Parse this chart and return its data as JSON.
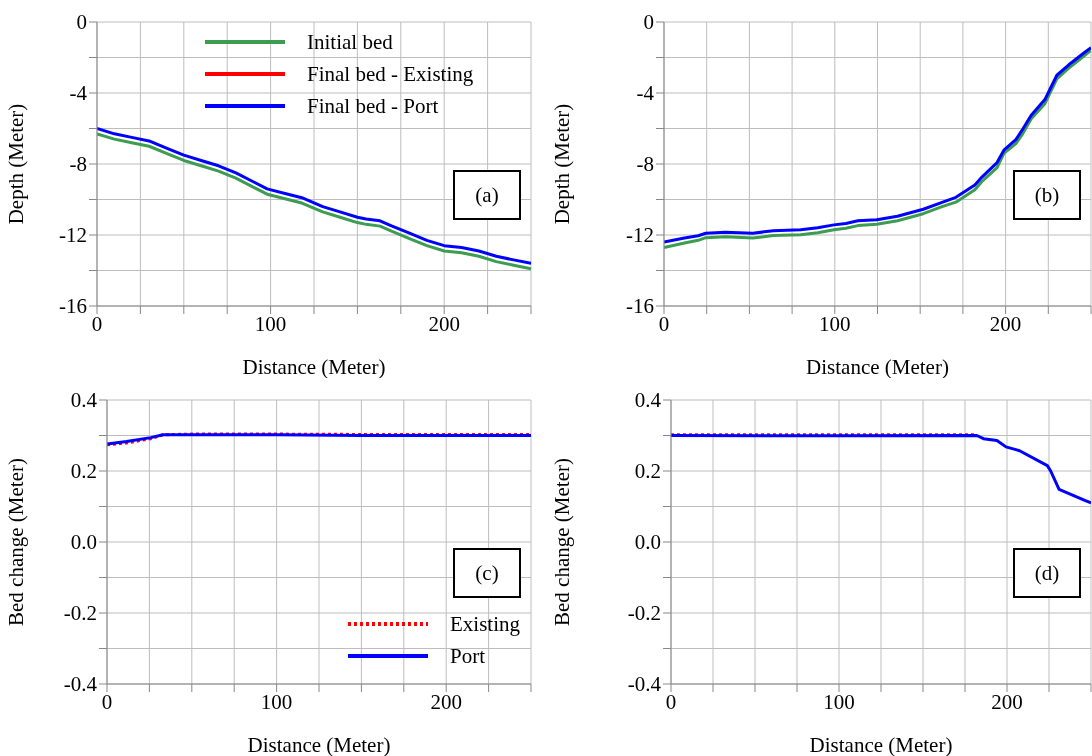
{
  "chart_data": [
    {
      "type": "line",
      "xlabel": "Distance (Meter)",
      "ylabel": "Depth (Meter)",
      "annotations": [
        "(a)"
      ],
      "legend": "top",
      "grid": true,
      "xlim": [
        0,
        250
      ],
      "xticks": [
        0,
        {
          "value": 25,
          "label": null
        },
        {
          "value": 50,
          "label": null
        },
        {
          "value": 75,
          "label": null
        },
        100,
        {
          "value": 125,
          "label": null
        },
        {
          "value": 150,
          "label": null
        },
        {
          "value": 175,
          "label": null
        },
        200,
        {
          "value": 225,
          "label": null
        },
        {
          "value": 250,
          "label": null
        }
      ],
      "ylim": [
        -16,
        0
      ],
      "yticks": [
        -16,
        {
          "value": -14,
          "label": null
        },
        -12,
        {
          "value": -10,
          "label": null
        },
        -8,
        {
          "value": -6,
          "label": null
        },
        -4,
        {
          "value": -2,
          "label": null
        },
        0
      ],
      "x": [
        0,
        10,
        20,
        30,
        40,
        50,
        60,
        70,
        80,
        90,
        98,
        110,
        118,
        130,
        140,
        150,
        155,
        163,
        170,
        180,
        190,
        200,
        210,
        220,
        230,
        240,
        250
      ],
      "series": [
        {
          "name": "Initial bed",
          "color": "#3c9c50",
          "line_style": "solid",
          "values": [
            -6.3,
            -6.6,
            -6.8,
            -7.0,
            -7.4,
            -7.8,
            -8.1,
            -8.4,
            -8.8,
            -9.3,
            -9.7,
            -10.0,
            -10.2,
            -10.7,
            -11.0,
            -11.3,
            -11.4,
            -11.5,
            -11.8,
            -12.2,
            -12.6,
            -12.9,
            -13.0,
            -13.2,
            -13.5,
            -13.7,
            -13.9
          ]
        },
        {
          "name": "Final bed - Existing",
          "color": "#ff0000",
          "line_style": "solid",
          "values": [
            null,
            null,
            null,
            null,
            null,
            null,
            null,
            null,
            null,
            null,
            null,
            null,
            null,
            null,
            null,
            null,
            null,
            null,
            null,
            null,
            null,
            null,
            null,
            null,
            null,
            null,
            null
          ]
        },
        {
          "name": "Final bed - Port",
          "color": "#0000ff",
          "line_style": "solid",
          "values": [
            -6.0,
            -6.3,
            -6.5,
            -6.7,
            -7.1,
            -7.5,
            -7.8,
            -8.1,
            -8.5,
            -9.0,
            -9.4,
            -9.7,
            -9.9,
            -10.4,
            -10.7,
            -11.0,
            -11.1,
            -11.2,
            -11.5,
            -11.9,
            -12.3,
            -12.6,
            -12.7,
            -12.9,
            -13.2,
            -13.4,
            -13.6
          ]
        }
      ]
    },
    {
      "type": "line",
      "xlabel": "Distance (Meter)",
      "ylabel": "Depth (Meter)",
      "annotations": [
        "(b)"
      ],
      "grid": true,
      "xlim": [
        0,
        250
      ],
      "xticks": [
        0,
        {
          "value": 25,
          "label": null
        },
        {
          "value": 50,
          "label": null
        },
        {
          "value": 75,
          "label": null
        },
        100,
        {
          "value": 125,
          "label": null
        },
        {
          "value": 150,
          "label": null
        },
        {
          "value": 175,
          "label": null
        },
        200,
        {
          "value": 225,
          "label": null
        },
        {
          "value": 250,
          "label": null
        }
      ],
      "ylim": [
        -16,
        0
      ],
      "yticks": [
        -16,
        {
          "value": -14,
          "label": null
        },
        -12,
        {
          "value": -10,
          "label": null
        },
        -8,
        {
          "value": -6,
          "label": null
        },
        -4,
        {
          "value": -2,
          "label": null
        },
        0
      ],
      "x": [
        0,
        12,
        20,
        24.5,
        36,
        52,
        64,
        80,
        90,
        99.5,
        106.5,
        113.5,
        124.6,
        136.7,
        151.8,
        162.8,
        170.9,
        182,
        186,
        195,
        199,
        206,
        210,
        215,
        223,
        230,
        237,
        246,
        250
      ],
      "series": [
        {
          "color": "#3c9c50",
          "line_style": "solid",
          "values": [
            -12.7,
            -12.45,
            -12.3,
            -12.15,
            -12.1,
            -12.17,
            -12.03,
            -11.98,
            -11.87,
            -11.7,
            -11.62,
            -11.47,
            -11.4,
            -11.2,
            -10.8,
            -10.4,
            -10.15,
            -9.45,
            -9.0,
            -8.2,
            -7.4,
            -6.85,
            -6.3,
            -5.45,
            -4.6,
            -3.2,
            -2.6,
            -1.9,
            -1.6
          ]
        },
        {
          "color": "#0000ff",
          "line_style": "solid",
          "values": [
            -12.4,
            -12.17,
            -12.04,
            -11.9,
            -11.84,
            -11.9,
            -11.76,
            -11.71,
            -11.59,
            -11.43,
            -11.35,
            -11.2,
            -11.14,
            -10.94,
            -10.55,
            -10.16,
            -9.88,
            -9.18,
            -8.75,
            -7.92,
            -7.22,
            -6.63,
            -6.04,
            -5.25,
            -4.37,
            -3.0,
            -2.41,
            -1.73,
            -1.45
          ]
        }
      ]
    },
    {
      "type": "line",
      "xlabel": "Distance (Meter)",
      "ylabel": "Bed change (Meter)",
      "annotations": [
        "(c)"
      ],
      "legend": "bottom right",
      "grid": true,
      "xlim": [
        0,
        250
      ],
      "xticks": [
        0,
        {
          "value": 25,
          "label": null
        },
        {
          "value": 50,
          "label": null
        },
        {
          "value": 75,
          "label": null
        },
        100,
        {
          "value": 125,
          "label": null
        },
        {
          "value": 150,
          "label": null
        },
        {
          "value": 175,
          "label": null
        },
        200,
        {
          "value": 225,
          "label": null
        },
        {
          "value": 250,
          "label": null
        }
      ],
      "ylim": [
        -0.4,
        0.4
      ],
      "yticks": [
        -0.4,
        {
          "value": -0.3,
          "label": null
        },
        -0.2,
        {
          "value": -0.1,
          "label": null
        },
        {
          "value": 0,
          "label": "0.0"
        },
        {
          "value": 0.1,
          "label": null
        },
        0.2,
        {
          "value": 0.3,
          "label": null
        },
        0.4
      ],
      "x": [
        0,
        11.5,
        25.8,
        33,
        50,
        100,
        150,
        200,
        250
      ],
      "series": [
        {
          "name": "Existing",
          "color": "#ff0000",
          "line_style": "dotted",
          "values": [
            0.274,
            0.279,
            0.291,
            0.302,
            0.304,
            0.304,
            0.303,
            0.303,
            0.303
          ]
        },
        {
          "name": "Port",
          "color": "#0000ff",
          "line_style": "solid",
          "values": [
            0.276,
            0.283,
            0.294,
            0.302,
            0.302,
            0.302,
            0.3,
            0.3,
            0.3
          ]
        }
      ]
    },
    {
      "type": "line",
      "xlabel": "Distance (Meter)",
      "ylabel": "Bed change (Meter)",
      "annotations": [
        "(d)"
      ],
      "grid": true,
      "xlim": [
        0,
        250
      ],
      "xticks": [
        0,
        {
          "value": 25,
          "label": null
        },
        {
          "value": 50,
          "label": null
        },
        {
          "value": 75,
          "label": null
        },
        100,
        {
          "value": 125,
          "label": null
        },
        {
          "value": 150,
          "label": null
        },
        {
          "value": 175,
          "label": null
        },
        200,
        {
          "value": 225,
          "label": null
        },
        {
          "value": 250,
          "label": null
        }
      ],
      "ylim": [
        -0.4,
        0.4
      ],
      "yticks": [
        -0.4,
        {
          "value": -0.3,
          "label": null
        },
        -0.2,
        {
          "value": -0.1,
          "label": null
        },
        {
          "value": 0,
          "label": "0.0"
        },
        {
          "value": 0.1,
          "label": null
        },
        0.2,
        {
          "value": 0.3,
          "label": null
        },
        0.4
      ],
      "x": [
        0,
        100,
        182,
        186,
        194,
        199.4,
        207.5,
        224,
        226,
        231,
        246.3,
        250
      ],
      "series": [
        {
          "color": "#ff0000",
          "line_style": "dotted",
          "values": [
            0.302,
            0.302,
            0.302,
            null,
            null,
            null,
            null,
            null,
            null,
            null,
            null,
            null
          ]
        },
        {
          "color": "#0000ff",
          "line_style": "solid",
          "values": [
            0.3,
            0.299,
            0.3,
            0.291,
            0.286,
            0.268,
            0.257,
            0.215,
            0.2,
            0.148,
            0.117,
            0.11
          ]
        }
      ]
    }
  ]
}
